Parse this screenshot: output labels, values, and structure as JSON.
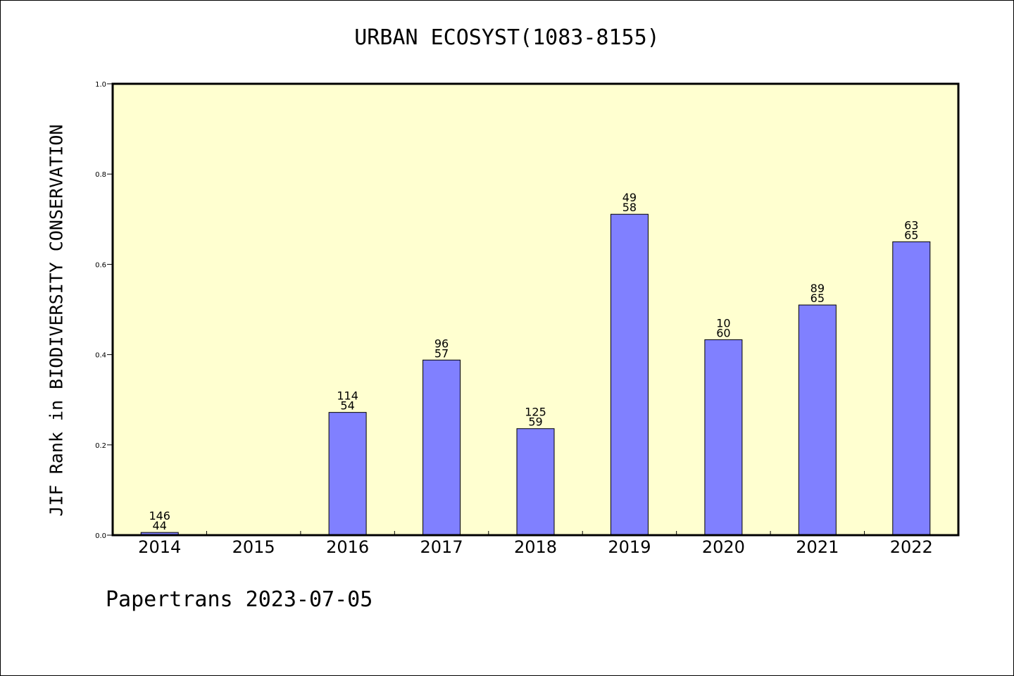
{
  "chart_data": {
    "type": "bar",
    "title": "URBAN ECOSYST(1083-8155)",
    "ylabel": "JIF Rank in BIODIVERSITY CONSERVATION",
    "xlabel": "",
    "ylim": [
      0,
      1.0
    ],
    "yticks": [
      "0.0",
      "0.2",
      "0.4",
      "0.6",
      "0.8",
      "1.0"
    ],
    "categories": [
      "2014",
      "2015",
      "2016",
      "2017",
      "2018",
      "2019",
      "2020",
      "2021",
      "2022"
    ],
    "values": [
      0.006,
      null,
      0.272,
      0.388,
      0.236,
      0.711,
      0.433,
      0.51,
      0.65
    ],
    "labels_top": [
      "146",
      "",
      "114",
      "96",
      "125",
      "49",
      "10",
      "89",
      "63"
    ],
    "labels_bottom": [
      "44",
      "",
      "54",
      "57",
      "59",
      "58",
      "60",
      "65",
      "65"
    ],
    "grid": false,
    "colors": {
      "plot_bg": "#ffffd0",
      "bar": "#8080ff"
    }
  },
  "footer": "Papertrans 2023-07-05"
}
